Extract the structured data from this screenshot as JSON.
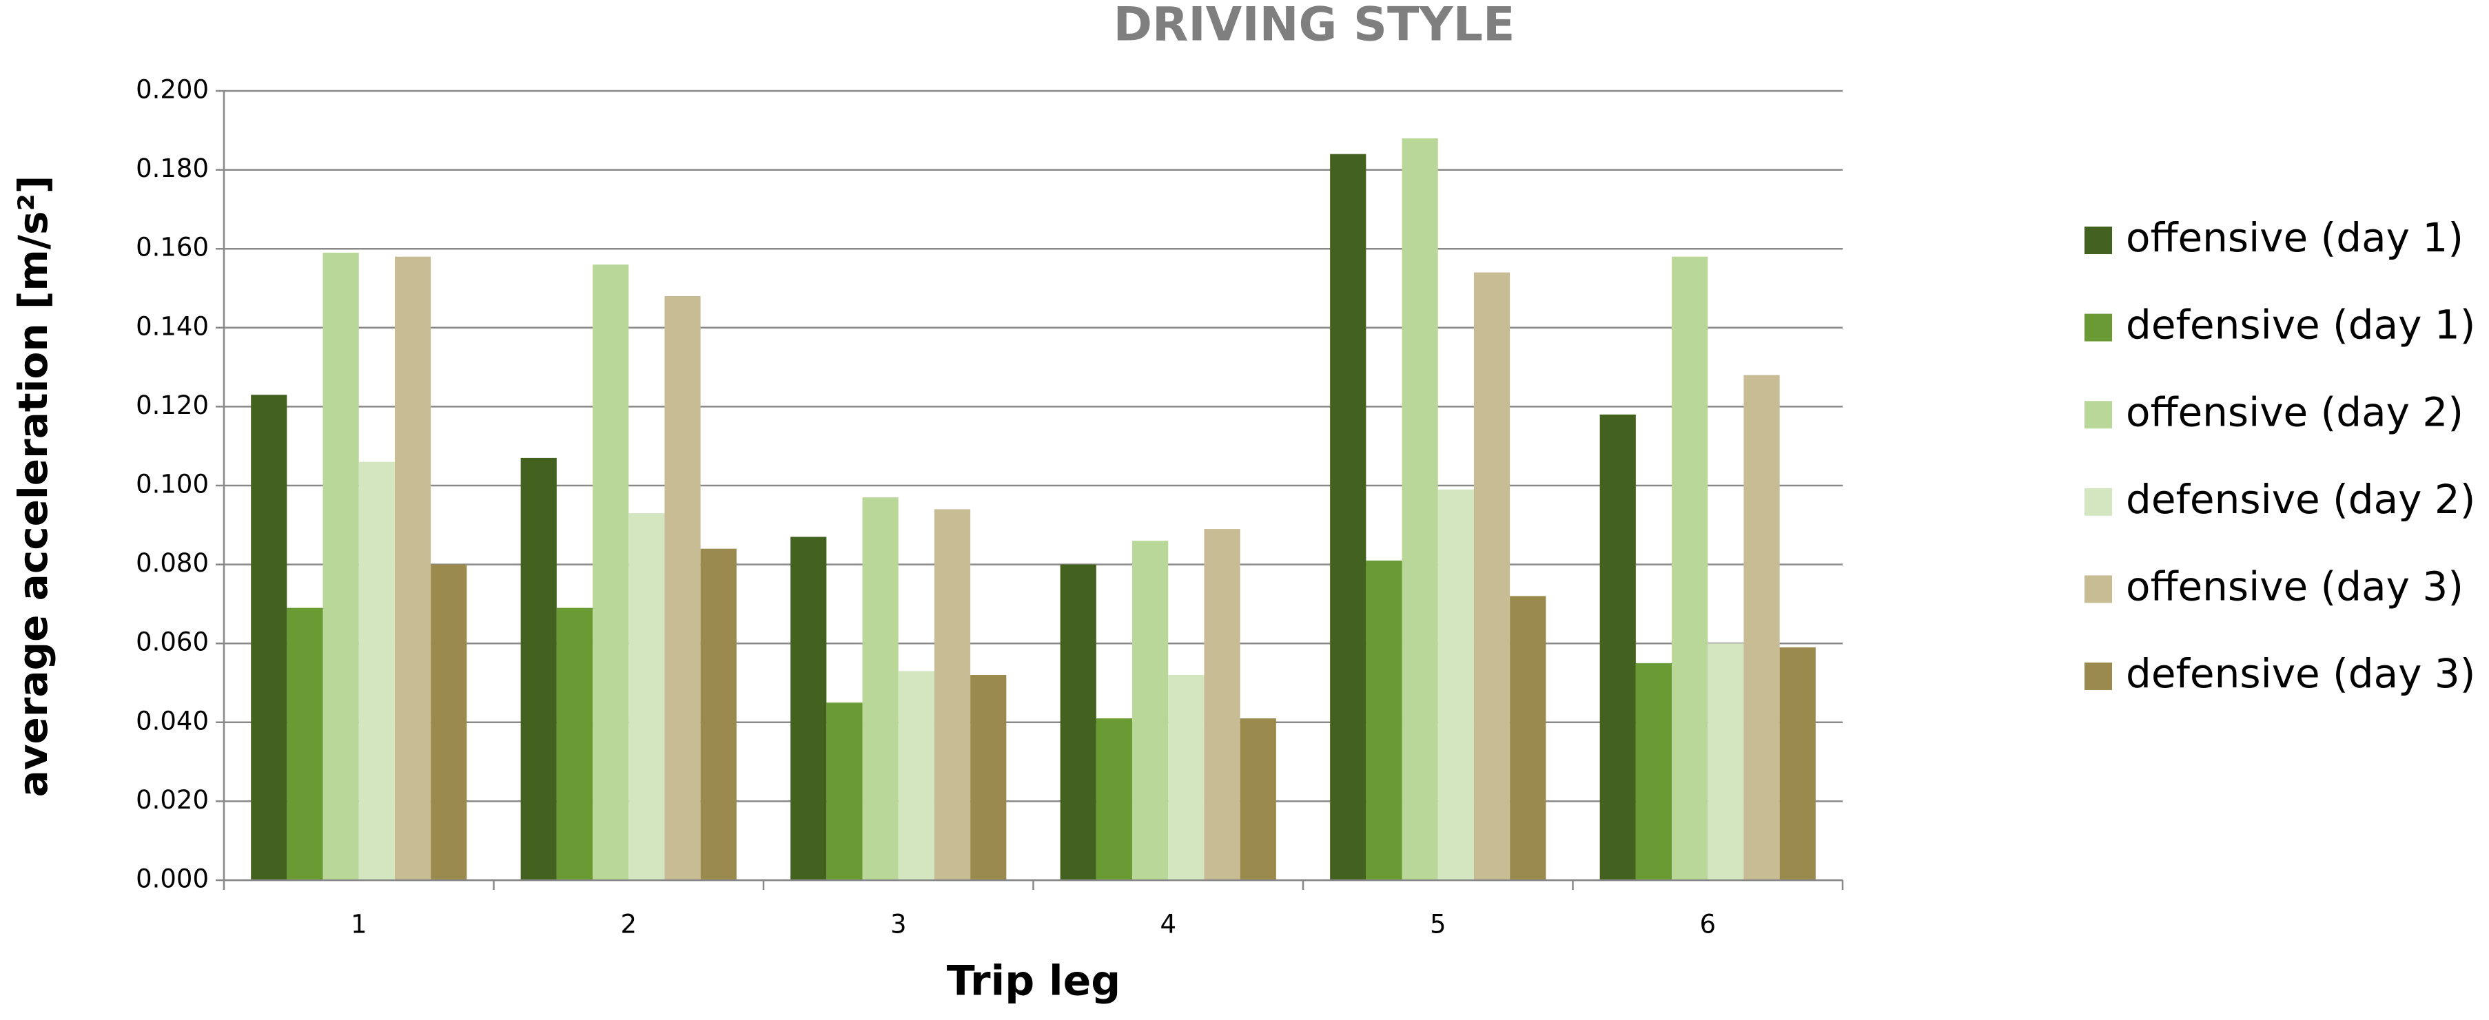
{
  "chart_data": {
    "type": "bar",
    "title": "DRIVING STYLE",
    "xlabel": "Trip leg",
    "ylabel": "average acceleration [m/s²]",
    "categories": [
      "1",
      "2",
      "3",
      "4",
      "5",
      "6"
    ],
    "series": [
      {
        "name": "offensive (day 1)",
        "color": "#43621f",
        "values": [
          0.123,
          0.107,
          0.087,
          0.08,
          0.184,
          0.118
        ]
      },
      {
        "name": "defensive (day 1)",
        "color": "#6a9a34",
        "values": [
          0.069,
          0.069,
          0.045,
          0.041,
          0.081,
          0.055
        ]
      },
      {
        "name": "offensive (day 2)",
        "color": "#bad79a",
        "values": [
          0.159,
          0.156,
          0.097,
          0.086,
          0.188,
          0.158
        ]
      },
      {
        "name": "defensive (day 2)",
        "color": "#d3e6c0",
        "values": [
          0.106,
          0.093,
          0.053,
          0.052,
          0.099,
          0.06
        ]
      },
      {
        "name": "offensive (day 3)",
        "color": "#c8bc94",
        "values": [
          0.158,
          0.148,
          0.094,
          0.089,
          0.154,
          0.128
        ]
      },
      {
        "name": "defensive (day 3)",
        "color": "#9b8a4e",
        "values": [
          0.08,
          0.084,
          0.052,
          0.041,
          0.072,
          0.059
        ]
      }
    ],
    "ylim": [
      0,
      0.2
    ],
    "yticks": [
      {
        "value": 0,
        "label": "0.000"
      },
      {
        "value": 0.02,
        "label": "0.020"
      },
      {
        "value": 0.04,
        "label": "0.040"
      },
      {
        "value": 0.06,
        "label": "0.060"
      },
      {
        "value": 0.08,
        "label": "0.080"
      },
      {
        "value": 0.1,
        "label": "0.100"
      },
      {
        "value": 0.12,
        "label": "0.120"
      },
      {
        "value": 0.14,
        "label": "0.140"
      },
      {
        "value": 0.16,
        "label": "0.160"
      },
      {
        "value": 0.18,
        "label": "0.180"
      },
      {
        "value": 0.2,
        "label": "0.200"
      }
    ],
    "grid": true,
    "legend": "right"
  }
}
